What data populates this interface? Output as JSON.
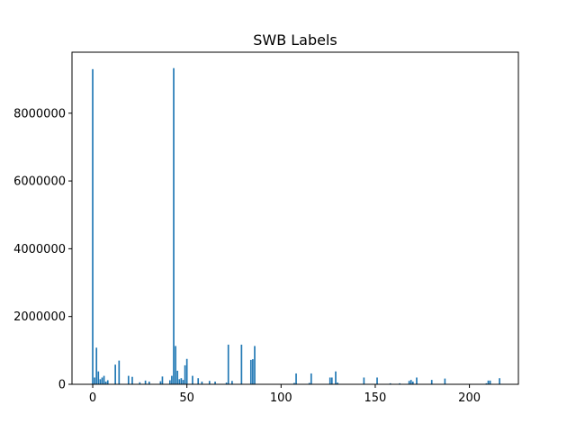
{
  "chart_data": {
    "type": "bar",
    "title": "SWB Labels",
    "xlabel": "",
    "ylabel": "",
    "xlim": [
      -11,
      226
    ],
    "ylim": [
      0,
      9800000
    ],
    "xticks": [
      0,
      50,
      100,
      150,
      200
    ],
    "yticks": [
      0,
      2000000,
      4000000,
      6000000,
      8000000
    ],
    "grid": false,
    "bar_color": "#1f77b4",
    "x": [
      0,
      1,
      2,
      3,
      4,
      5,
      6,
      7,
      8,
      12,
      14,
      19,
      21,
      25,
      28,
      30,
      36,
      37,
      41,
      42,
      43,
      44,
      45,
      46,
      47,
      48,
      49,
      50,
      53,
      56,
      58,
      62,
      65,
      71,
      72,
      74,
      79,
      84,
      85,
      86,
      107,
      108,
      115,
      116,
      126,
      127,
      129,
      130,
      144,
      151,
      158,
      163,
      168,
      169,
      170,
      172,
      180,
      187,
      209,
      210,
      211,
      216
    ],
    "values": [
      9300000,
      200000,
      1080000,
      380000,
      150000,
      200000,
      250000,
      80000,
      120000,
      580000,
      700000,
      250000,
      220000,
      60000,
      110000,
      80000,
      90000,
      230000,
      120000,
      250000,
      9330000,
      1130000,
      400000,
      150000,
      180000,
      130000,
      560000,
      750000,
      250000,
      180000,
      80000,
      100000,
      80000,
      50000,
      1170000,
      100000,
      1170000,
      720000,
      740000,
      1130000,
      40000,
      320000,
      40000,
      320000,
      200000,
      200000,
      380000,
      50000,
      200000,
      200000,
      30000,
      30000,
      100000,
      130000,
      80000,
      200000,
      130000,
      170000,
      30000,
      110000,
      110000,
      180000
    ]
  }
}
